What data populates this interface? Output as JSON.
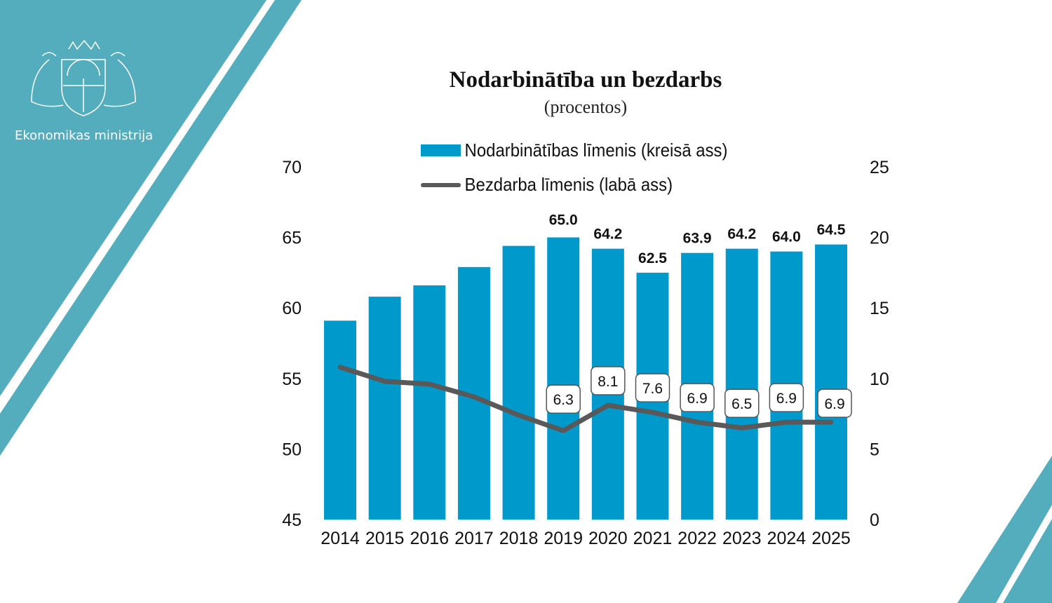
{
  "brand": {
    "name": "Ekonomikas ministrija",
    "logo": "Latvia coat of arms",
    "color": "#54adbd"
  },
  "chart_data": {
    "type": "bar+line",
    "title": "Nodarbinātība un bezdarbs",
    "subtitle": "(procentos)",
    "categories": [
      "2014",
      "2015",
      "2016",
      "2017",
      "2018",
      "2019",
      "2020",
      "2021",
      "2022",
      "2023",
      "2024",
      "2025"
    ],
    "series": [
      {
        "name": "Nodarbinātības līmenis (kreisā ass)",
        "type": "bar",
        "axis": "left",
        "color": "#0099cc",
        "values": [
          59.1,
          60.8,
          61.6,
          62.9,
          64.4,
          65.0,
          64.2,
          62.5,
          63.9,
          64.2,
          64.0,
          64.5
        ],
        "labels": [
          null,
          null,
          null,
          null,
          null,
          "65.0",
          "64.2",
          "62.5",
          "63.9",
          "64.2",
          "64.0",
          "64.5"
        ]
      },
      {
        "name": "Bezdarba līmenis (labā ass)",
        "type": "line",
        "axis": "right",
        "color": "#595959",
        "values": [
          10.8,
          9.8,
          9.6,
          8.7,
          7.4,
          6.3,
          8.1,
          7.6,
          6.9,
          6.5,
          6.9,
          6.9
        ],
        "labels": [
          null,
          null,
          null,
          null,
          null,
          "6.3",
          "8.1",
          "7.6",
          "6.9",
          "6.5",
          "6.9",
          "6.9"
        ]
      }
    ],
    "left_axis": {
      "ylim": [
        45,
        70
      ],
      "ticks": [
        "45",
        "50",
        "55",
        "60",
        "65",
        "70"
      ]
    },
    "right_axis": {
      "ylim": [
        0,
        25
      ],
      "ticks": [
        "0",
        "5",
        "10",
        "15",
        "20",
        "25"
      ]
    },
    "grid": false,
    "legend": "top"
  }
}
